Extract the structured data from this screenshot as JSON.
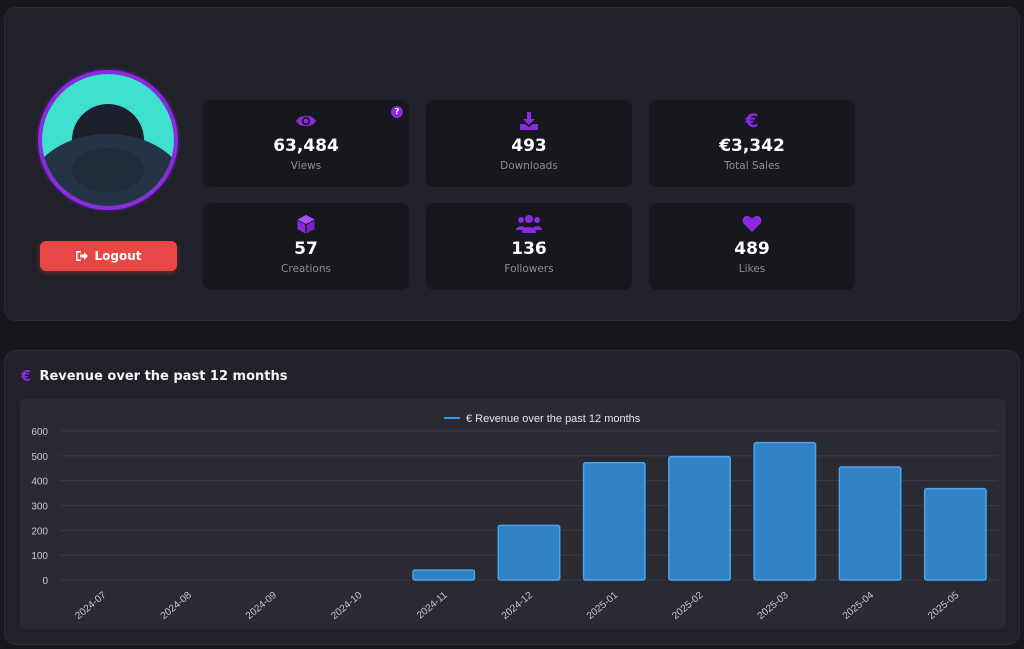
{
  "profile": {
    "logout_label": "Logout",
    "help_badge": "?",
    "colors": {
      "accent": "#8a2be2",
      "avatar_bg": "#3fe0d0",
      "avatar_shape": "#243447",
      "logout": "#e94646"
    }
  },
  "stats": [
    {
      "icon": "eye-icon",
      "value": "63,484",
      "label": "Views"
    },
    {
      "icon": "download-icon",
      "value": "493",
      "label": "Downloads"
    },
    {
      "icon": "euro-icon",
      "value": "€3,342",
      "label": "Total Sales"
    },
    {
      "icon": "cube-icon",
      "value": "57",
      "label": "Creations"
    },
    {
      "icon": "users-icon",
      "value": "136",
      "label": "Followers"
    },
    {
      "icon": "heart-icon",
      "value": "489",
      "label": "Likes"
    }
  ],
  "revenue": {
    "section_icon": "€",
    "section_title": "Revenue over the past 12 months"
  },
  "chart_data": {
    "type": "bar",
    "title": "",
    "legend": [
      "€ Revenue over the past 12 months"
    ],
    "legend_position": "top",
    "categories": [
      "2024-07",
      "2024-08",
      "2024-09",
      "2024-10",
      "2024-11",
      "2024-12",
      "2025-01",
      "2025-02",
      "2025-03",
      "2025-04",
      "2025-05"
    ],
    "series": [
      {
        "name": "€ Revenue over the past 12 months",
        "values": [
          0,
          0,
          0,
          0,
          40,
          220,
          472,
          497,
          553,
          455,
          368
        ]
      }
    ],
    "yticks": [
      0,
      100,
      200,
      300,
      400,
      500,
      600
    ],
    "ylim": [
      0,
      600
    ],
    "grid": true,
    "xlabel": "",
    "ylabel": "",
    "colors": {
      "bar_fill": "#3182c4",
      "bar_border": "#4aa3ef",
      "grid": "#3a3a44",
      "tick": "#c8c8d0"
    }
  }
}
